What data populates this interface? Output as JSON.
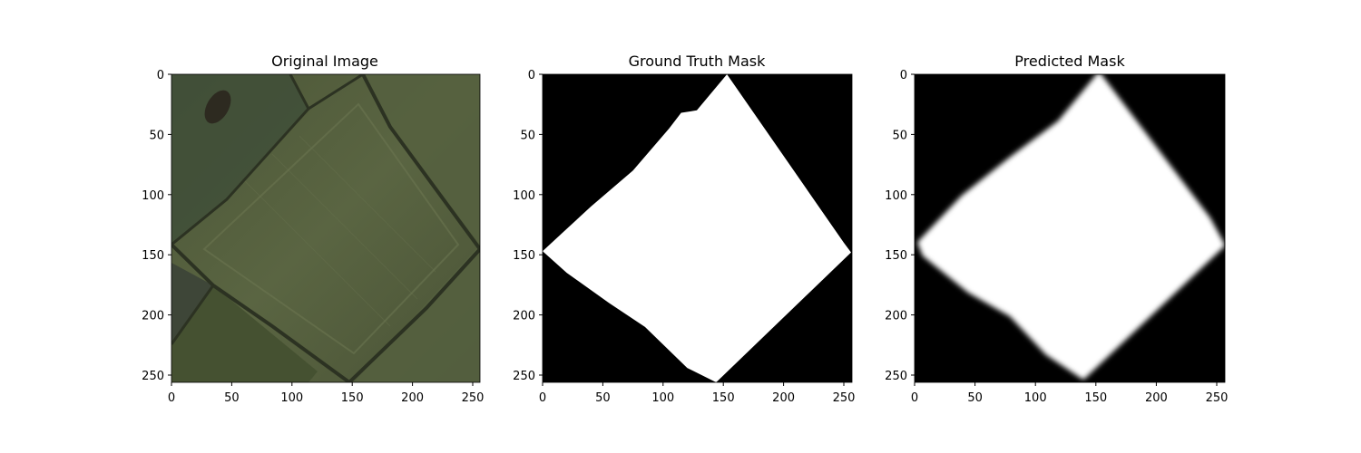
{
  "panels": [
    {
      "id": "original",
      "title": "Original Image",
      "kind": "aerial-photo",
      "xticks": [
        "0",
        "50",
        "100",
        "150",
        "200",
        "250"
      ],
      "yticks": [
        "0",
        "50",
        "100",
        "150",
        "200",
        "250"
      ]
    },
    {
      "id": "ground-truth",
      "title": "Ground Truth Mask",
      "kind": "binary-mask",
      "xticks": [
        "0",
        "50",
        "100",
        "150",
        "200",
        "250"
      ],
      "yticks": [
        "0",
        "50",
        "100",
        "150",
        "200",
        "250"
      ],
      "polygon": [
        [
          153,
          0
        ],
        [
          250,
          140
        ],
        [
          256,
          148
        ],
        [
          144,
          256
        ],
        [
          120,
          244
        ],
        [
          85,
          210
        ],
        [
          55,
          190
        ],
        [
          20,
          165
        ],
        [
          0,
          147
        ],
        [
          40,
          110
        ],
        [
          75,
          80
        ],
        [
          105,
          45
        ],
        [
          115,
          32
        ],
        [
          128,
          30
        ]
      ]
    },
    {
      "id": "predicted",
      "title": "Predicted Mask",
      "kind": "soft-mask",
      "xticks": [
        "0",
        "50",
        "100",
        "150",
        "200",
        "250"
      ],
      "yticks": [
        "0",
        "50",
        "100",
        "150",
        "200",
        "250"
      ],
      "polygon": [
        [
          153,
          0
        ],
        [
          244,
          120
        ],
        [
          256,
          142
        ],
        [
          140,
          252
        ],
        [
          110,
          232
        ],
        [
          80,
          200
        ],
        [
          45,
          180
        ],
        [
          8,
          150
        ],
        [
          4,
          140
        ],
        [
          40,
          102
        ],
        [
          80,
          70
        ],
        [
          120,
          40
        ]
      ]
    }
  ],
  "image_size": [
    256,
    256
  ],
  "colors": {
    "field": "#5a6440",
    "field_dark": "#3c4530",
    "mask_bg": "#000000",
    "mask_fg": "#ffffff"
  }
}
